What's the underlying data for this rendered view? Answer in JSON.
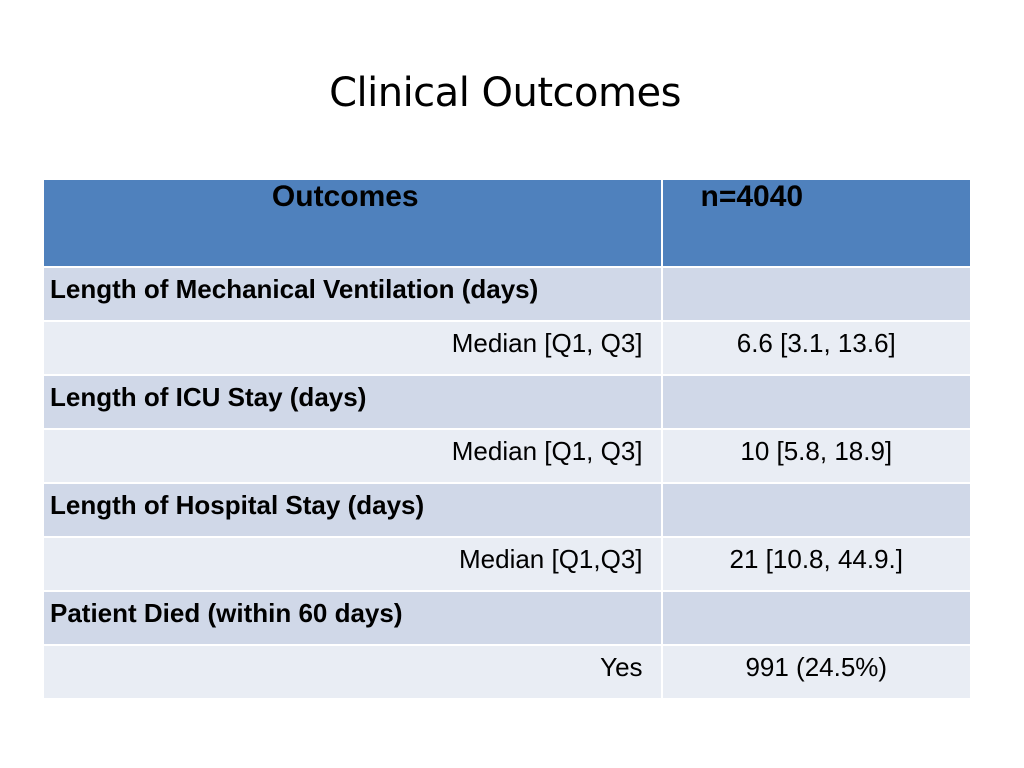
{
  "slide": {
    "title": "Clinical Outcomes"
  },
  "table": {
    "headers": [
      "Outcomes",
      "n=4040"
    ],
    "rows": [
      {
        "type": "section",
        "label": "Length of Mechanical Ventilation (days)",
        "value": ""
      },
      {
        "type": "stat",
        "label": "Median [Q1, Q3]",
        "value": "6.6 [3.1, 13.6]"
      },
      {
        "type": "section",
        "label": "Length of ICU Stay (days)",
        "value": ""
      },
      {
        "type": "stat",
        "label": "Median [Q1, Q3]",
        "value": "10 [5.8, 18.9]"
      },
      {
        "type": "section",
        "label": "Length of Hospital Stay (days)",
        "value": ""
      },
      {
        "type": "stat",
        "label": "Median [Q1,Q3]",
        "value": "21 [10.8, 44.9.]"
      },
      {
        "type": "section",
        "label": "Patient Died (within 60 days)",
        "value": ""
      },
      {
        "type": "stat",
        "label": "Yes",
        "value": "991 (24.5%)"
      }
    ]
  },
  "colors": {
    "header": "#4f81bd",
    "section_row": "#d0d8e8",
    "stat_row": "#e9edf4"
  }
}
